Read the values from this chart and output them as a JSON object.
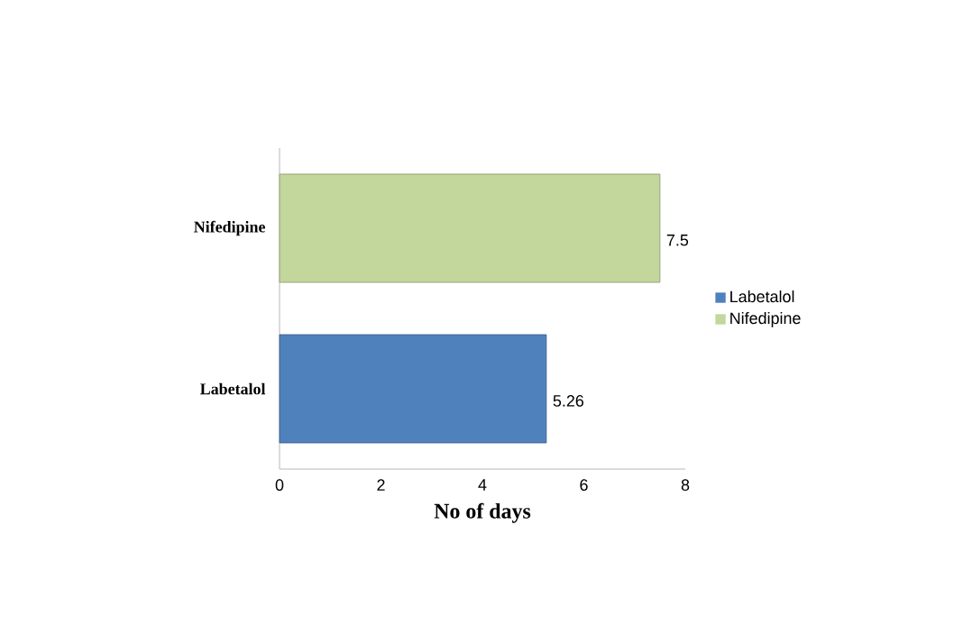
{
  "chart_data": {
    "type": "bar",
    "orientation": "horizontal",
    "xlabel": "No of days",
    "categories": [
      "Nifedipine",
      "Labetalol"
    ],
    "series": [
      {
        "name": "Labetalol",
        "color": "#4f81bd",
        "values": [
          null,
          5.26
        ]
      },
      {
        "name": "Nifedipine",
        "color": "#c3d69b",
        "values": [
          7.5,
          null
        ]
      }
    ],
    "xlim": [
      0,
      8
    ],
    "xticks": [
      0,
      2,
      4,
      6,
      8
    ],
    "data_labels": true,
    "legend": "right",
    "grid": false
  }
}
